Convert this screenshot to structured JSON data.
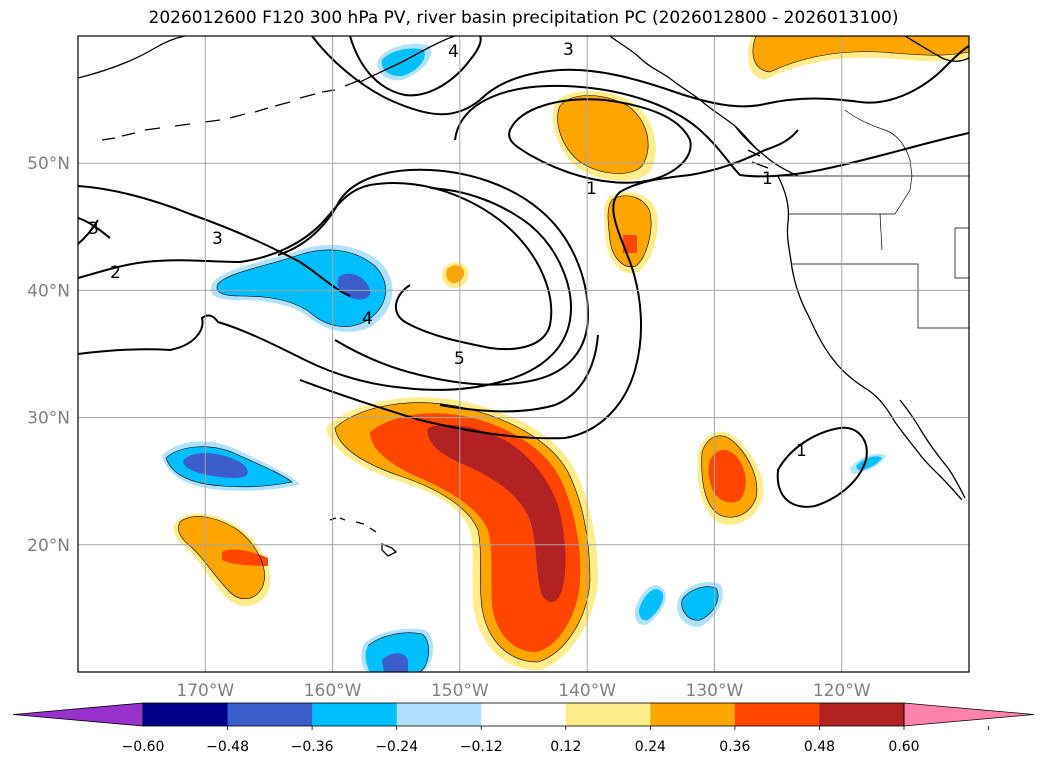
{
  "title": "2026012600 F120 300 hPa PV, river basin precipitation PC (2026012800 - 2026013100)",
  "map": {
    "lon_range": [
      -180,
      -110
    ],
    "lat_range": [
      10,
      60
    ],
    "lat_ticks": [
      {
        "value": 50,
        "label": "50°N"
      },
      {
        "value": 40,
        "label": "40°N"
      },
      {
        "value": 30,
        "label": "30°N"
      },
      {
        "value": 20,
        "label": "20°N"
      }
    ],
    "lon_ticks": [
      {
        "value": -170,
        "label": "170°W"
      },
      {
        "value": -160,
        "label": "160°W"
      },
      {
        "value": -150,
        "label": "150°W"
      },
      {
        "value": -140,
        "label": "140°W"
      },
      {
        "value": -130,
        "label": "130°W"
      },
      {
        "value": -120,
        "label": "120°W"
      }
    ],
    "grid": true,
    "contour_labels": [
      "4",
      "3",
      "1",
      "1",
      "3",
      "3",
      "2",
      "4",
      "5",
      "1"
    ]
  },
  "colorbar": {
    "extend": "both",
    "colors": [
      "#9932CC",
      "#00008B",
      "#3A5FCD",
      "#00BFFF",
      "#B0E2FF",
      "#FFFFFF",
      "#FFEC8B",
      "#FFA500",
      "#FF4500",
      "#B22222",
      "#FF82AB"
    ],
    "tick_labels": [
      "−0.60",
      "−0.48",
      "−0.36",
      "−0.24",
      "−0.12",
      "0.12",
      "0.24",
      "0.36",
      "0.48",
      "0.60"
    ]
  }
}
